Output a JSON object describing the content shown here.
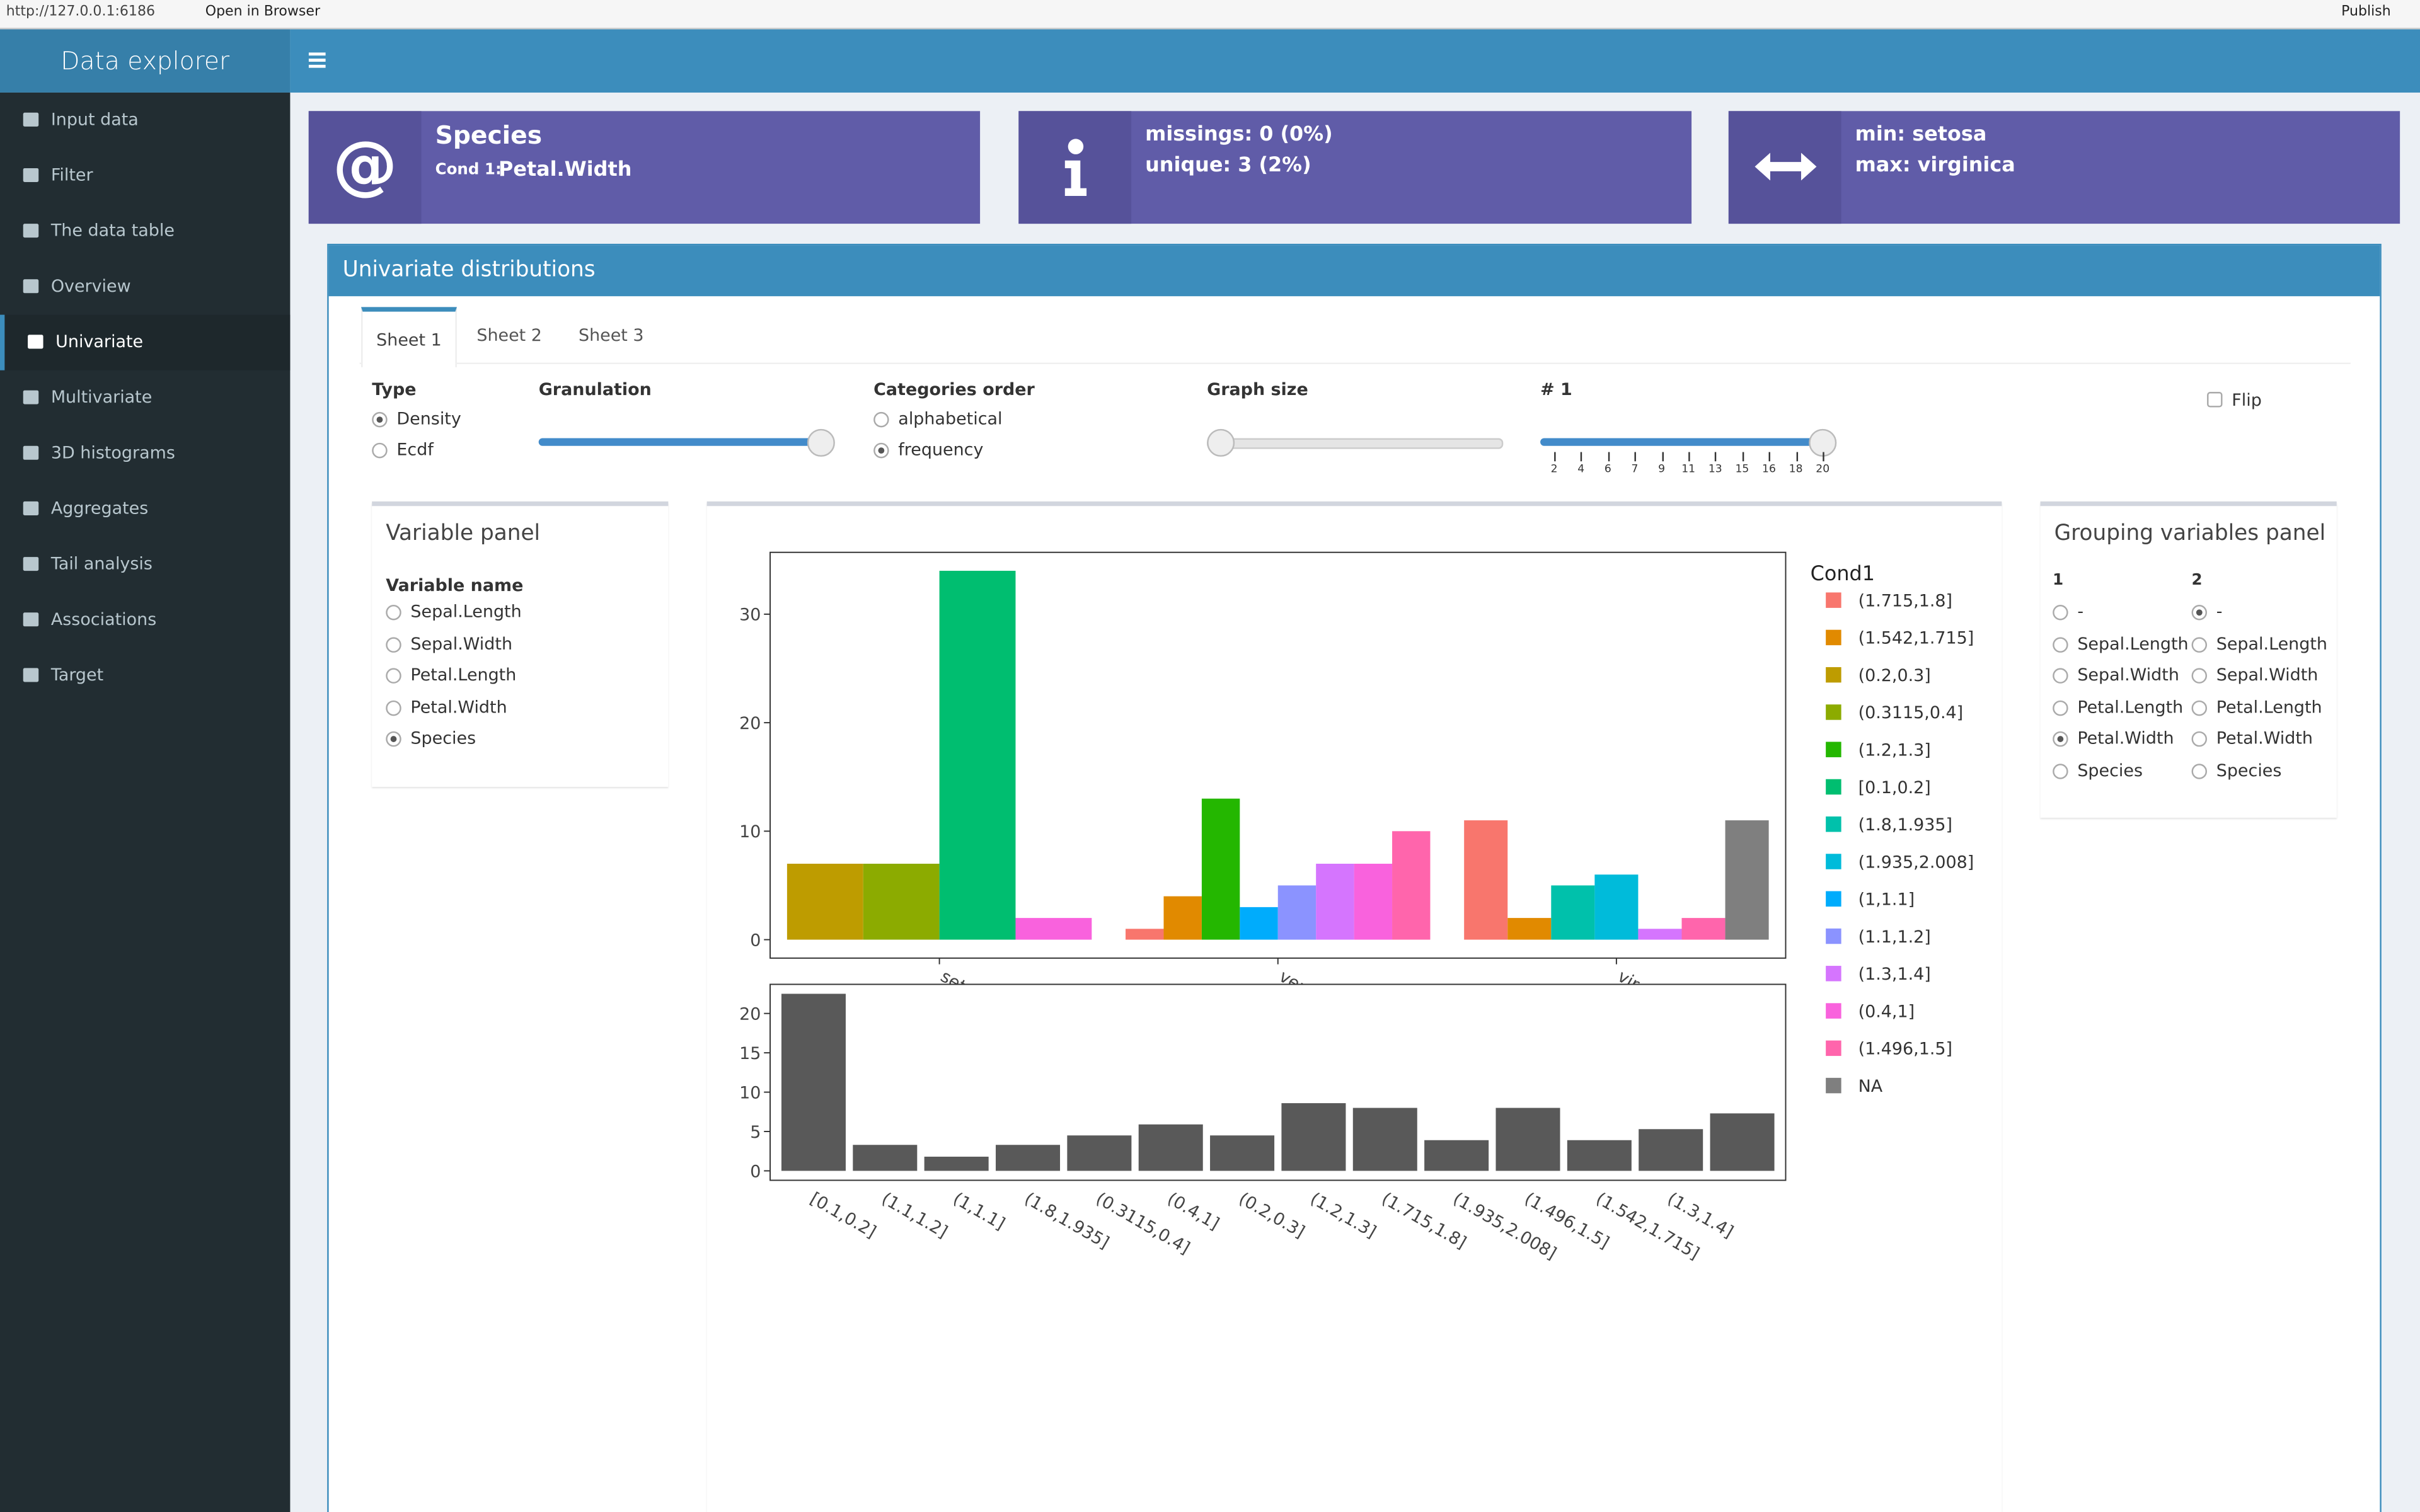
{
  "browser_bar": {
    "url": "http://127.0.0.1:6186",
    "open": "Open in Browser",
    "publish": "Publish"
  },
  "sidebar": {
    "title": "Data explorer",
    "menu": [
      "Input data",
      "Filter",
      "The data table",
      "Overview",
      "Univariate",
      "Multivariate",
      "3D histograms",
      "Aggregates",
      "Tail analysis",
      "Associations",
      "Target"
    ],
    "active": 4
  },
  "info_boxes": [
    {
      "icon": "@",
      "title": "Species",
      "cond_label": "Cond 1:",
      "cond_value": "Petal.Width"
    },
    {
      "lines": [
        "missings: 0 (0%)",
        "unique: 3 (2%)"
      ]
    },
    {
      "lines": [
        "min: setosa",
        "max: virginica"
      ]
    }
  ],
  "panel": {
    "title": "Univariate distributions",
    "tabs": [
      "Sheet 1",
      "Sheet 2",
      "Sheet 3"
    ],
    "active_tab": 0
  },
  "controls": {
    "type": {
      "label": "Type",
      "options": [
        "Density",
        "Ecdf"
      ],
      "selected": 0
    },
    "granulation": {
      "label": "Granulation"
    },
    "categories_order": {
      "label": "Categories order",
      "options": [
        "alphabetical",
        "frequency"
      ],
      "selected": 1
    },
    "graph_size": {
      "label": "Graph size"
    },
    "slider": {
      "label": "# 1",
      "ticks": [
        2,
        {
          "value": 3.8,
          "label": "4"
        },
        {
          "value": 5.6,
          "label": "6"
        },
        {
          "value": 7.4,
          "label": "7"
        },
        {
          "value": 9.2,
          "label": "9"
        },
        11,
        {
          "value": 12.8,
          "label": "13"
        },
        {
          "value": 14.6,
          "label": "15"
        },
        {
          "value": 16.4,
          "label": "16"
        },
        {
          "value": 18.2,
          "label": "18"
        },
        20
      ],
      "value": 20
    },
    "flip": {
      "label": "Flip",
      "checked": false
    }
  },
  "variable_panel": {
    "title": "Variable panel",
    "label": "Variable name",
    "options": [
      "Sepal.Length",
      "Sepal.Width",
      "Petal.Length",
      "Petal.Width",
      "Species"
    ],
    "selected": 4
  },
  "grouping_panel": {
    "title": "Grouping variables panel",
    "columns": [
      {
        "label": "1",
        "options": [
          "-",
          "Sepal.Length",
          "Sepal.Width",
          "Petal.Length",
          "Petal.Width",
          "Species"
        ],
        "selected": 4
      },
      {
        "label": "2",
        "options": [
          "-",
          "Sepal.Length",
          "Sepal.Width",
          "Petal.Length",
          "Petal.Width",
          "Species"
        ],
        "selected": 0
      }
    ]
  },
  "chart_data": [
    {
      "type": "grouped_bar",
      "categories": [
        "setosa",
        "versicolor",
        "virginica"
      ],
      "legend_title": "Cond1",
      "ylim": [
        -1.7,
        35.7
      ],
      "yticks": [
        0,
        10,
        20,
        30
      ],
      "series": [
        {
          "name": "(1.715,1.8]",
          "color": "#F8766D",
          "values": [
            null,
            1,
            11
          ]
        },
        {
          "name": "(1.542,1.715]",
          "color": "#E18A00",
          "values": [
            null,
            4,
            2
          ]
        },
        {
          "name": "(0.2,0.3]",
          "color": "#BE9C00",
          "values": [
            7,
            null,
            null
          ]
        },
        {
          "name": "(0.3115,0.4]",
          "color": "#8CAB00",
          "values": [
            7,
            null,
            null
          ]
        },
        {
          "name": "(1.2,1.3]",
          "color": "#24B700",
          "values": [
            null,
            13,
            null
          ]
        },
        {
          "name": "[0.1,0.2]",
          "color": "#00BE70",
          "values": [
            34,
            null,
            null
          ]
        },
        {
          "name": "(1.8,1.935]",
          "color": "#00C1AB",
          "values": [
            null,
            null,
            5
          ]
        },
        {
          "name": "(1.935,2.008]",
          "color": "#00BBDA",
          "values": [
            null,
            null,
            6
          ]
        },
        {
          "name": "(1,1.1]",
          "color": "#00ACFC",
          "values": [
            null,
            3,
            null
          ]
        },
        {
          "name": "(1.1,1.2]",
          "color": "#8B93FF",
          "values": [
            null,
            5,
            null
          ]
        },
        {
          "name": "(1.3,1.4]",
          "color": "#D575FE",
          "values": [
            null,
            7,
            1
          ]
        },
        {
          "name": "(0.4,1]",
          "color": "#F962DD",
          "values": [
            2,
            7,
            null
          ]
        },
        {
          "name": "(1.496,1.5]",
          "color": "#FF65AC",
          "values": [
            null,
            10,
            2
          ]
        },
        {
          "name": "NA",
          "color": "#7F7F7F",
          "values": [
            null,
            null,
            11
          ]
        }
      ]
    },
    {
      "type": "bar",
      "categories": [
        "[0.1,0.2]",
        "(1.1,1.2]",
        "(1,1.1]",
        "(1.8,1.935]",
        "(0.3115,0.4]",
        "(0.4,1]",
        "(0.2,0.3]",
        "(1.2,1.3]",
        "(1.715,1.8]",
        "(1.935,2.008]",
        "(1.496,1.5]",
        "(1.542,1.715]",
        "(1.3,1.4]",
        null
      ],
      "values": [
        22.5,
        3.3,
        1.8,
        3.3,
        4.5,
        5.9,
        4.5,
        8.6,
        8.0,
        3.9,
        8.0,
        3.9,
        5.3,
        7.3
      ],
      "color": "#595959",
      "ylim": [
        -1.2,
        23.7
      ],
      "yticks": [
        0,
        5,
        10,
        15,
        20
      ]
    }
  ]
}
